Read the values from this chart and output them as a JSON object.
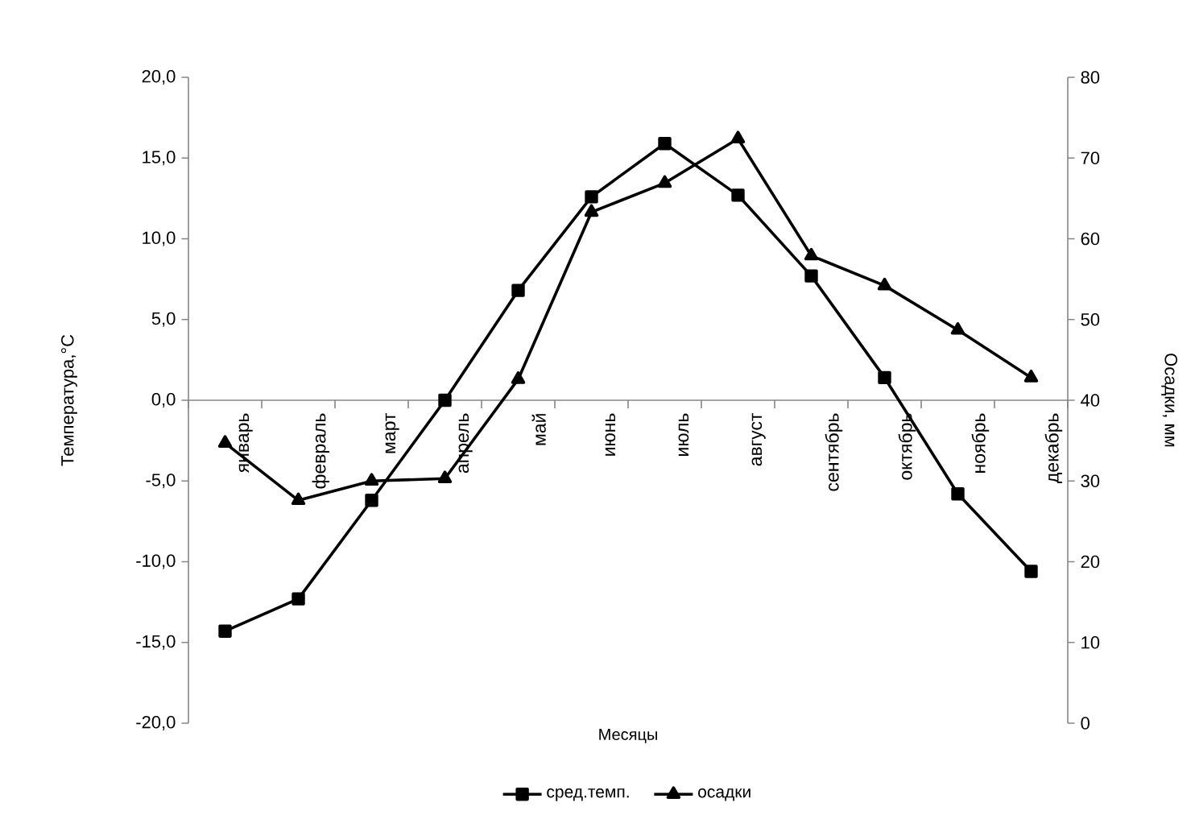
{
  "chart_data": {
    "type": "line",
    "xlabel": "Месяцы",
    "ylabel": "Температура,°C",
    "y2label": "Осадки, мм",
    "categories": [
      "январь",
      "февраль",
      "март",
      "апрель",
      "май",
      "июнь",
      "июль",
      "август",
      "сентябрь",
      "октябрь",
      "ноябрь",
      "декабрь"
    ],
    "series": [
      {
        "name": "сред.темп.",
        "color": "#000000",
        "marker": "square",
        "values": [
          -14.3,
          -12.3,
          -6.2,
          0.0,
          6.8,
          12.6,
          15.9,
          12.7,
          7.7,
          1.4,
          -5.8,
          -10.6
        ]
      },
      {
        "name": "осадки",
        "color": "#000000",
        "marker": "triangle",
        "axis": "y2",
        "values": [
          34.7,
          27.6,
          30.0,
          30.3,
          42.6,
          63.3,
          66.9,
          72.4,
          57.9,
          54.2,
          48.7,
          42.8
        ]
      }
    ],
    "ylim": [
      -20,
      20
    ],
    "yticks": [
      {
        "value": -20,
        "label": "-20,0"
      },
      {
        "value": -15,
        "label": "-15,0"
      },
      {
        "value": -10,
        "label": "-10,0"
      },
      {
        "value": -5,
        "label": "-5,0"
      },
      {
        "value": 0,
        "label": "0,0"
      },
      {
        "value": 5,
        "label": "5,0"
      },
      {
        "value": 10,
        "label": "10,0"
      },
      {
        "value": 15,
        "label": "15,0"
      },
      {
        "value": 20,
        "label": "20,0"
      }
    ],
    "y2lim": [
      0,
      80
    ],
    "y2ticks": [
      0,
      10,
      20,
      30,
      40,
      50,
      60,
      70,
      80
    ],
    "legend": "bottom"
  }
}
